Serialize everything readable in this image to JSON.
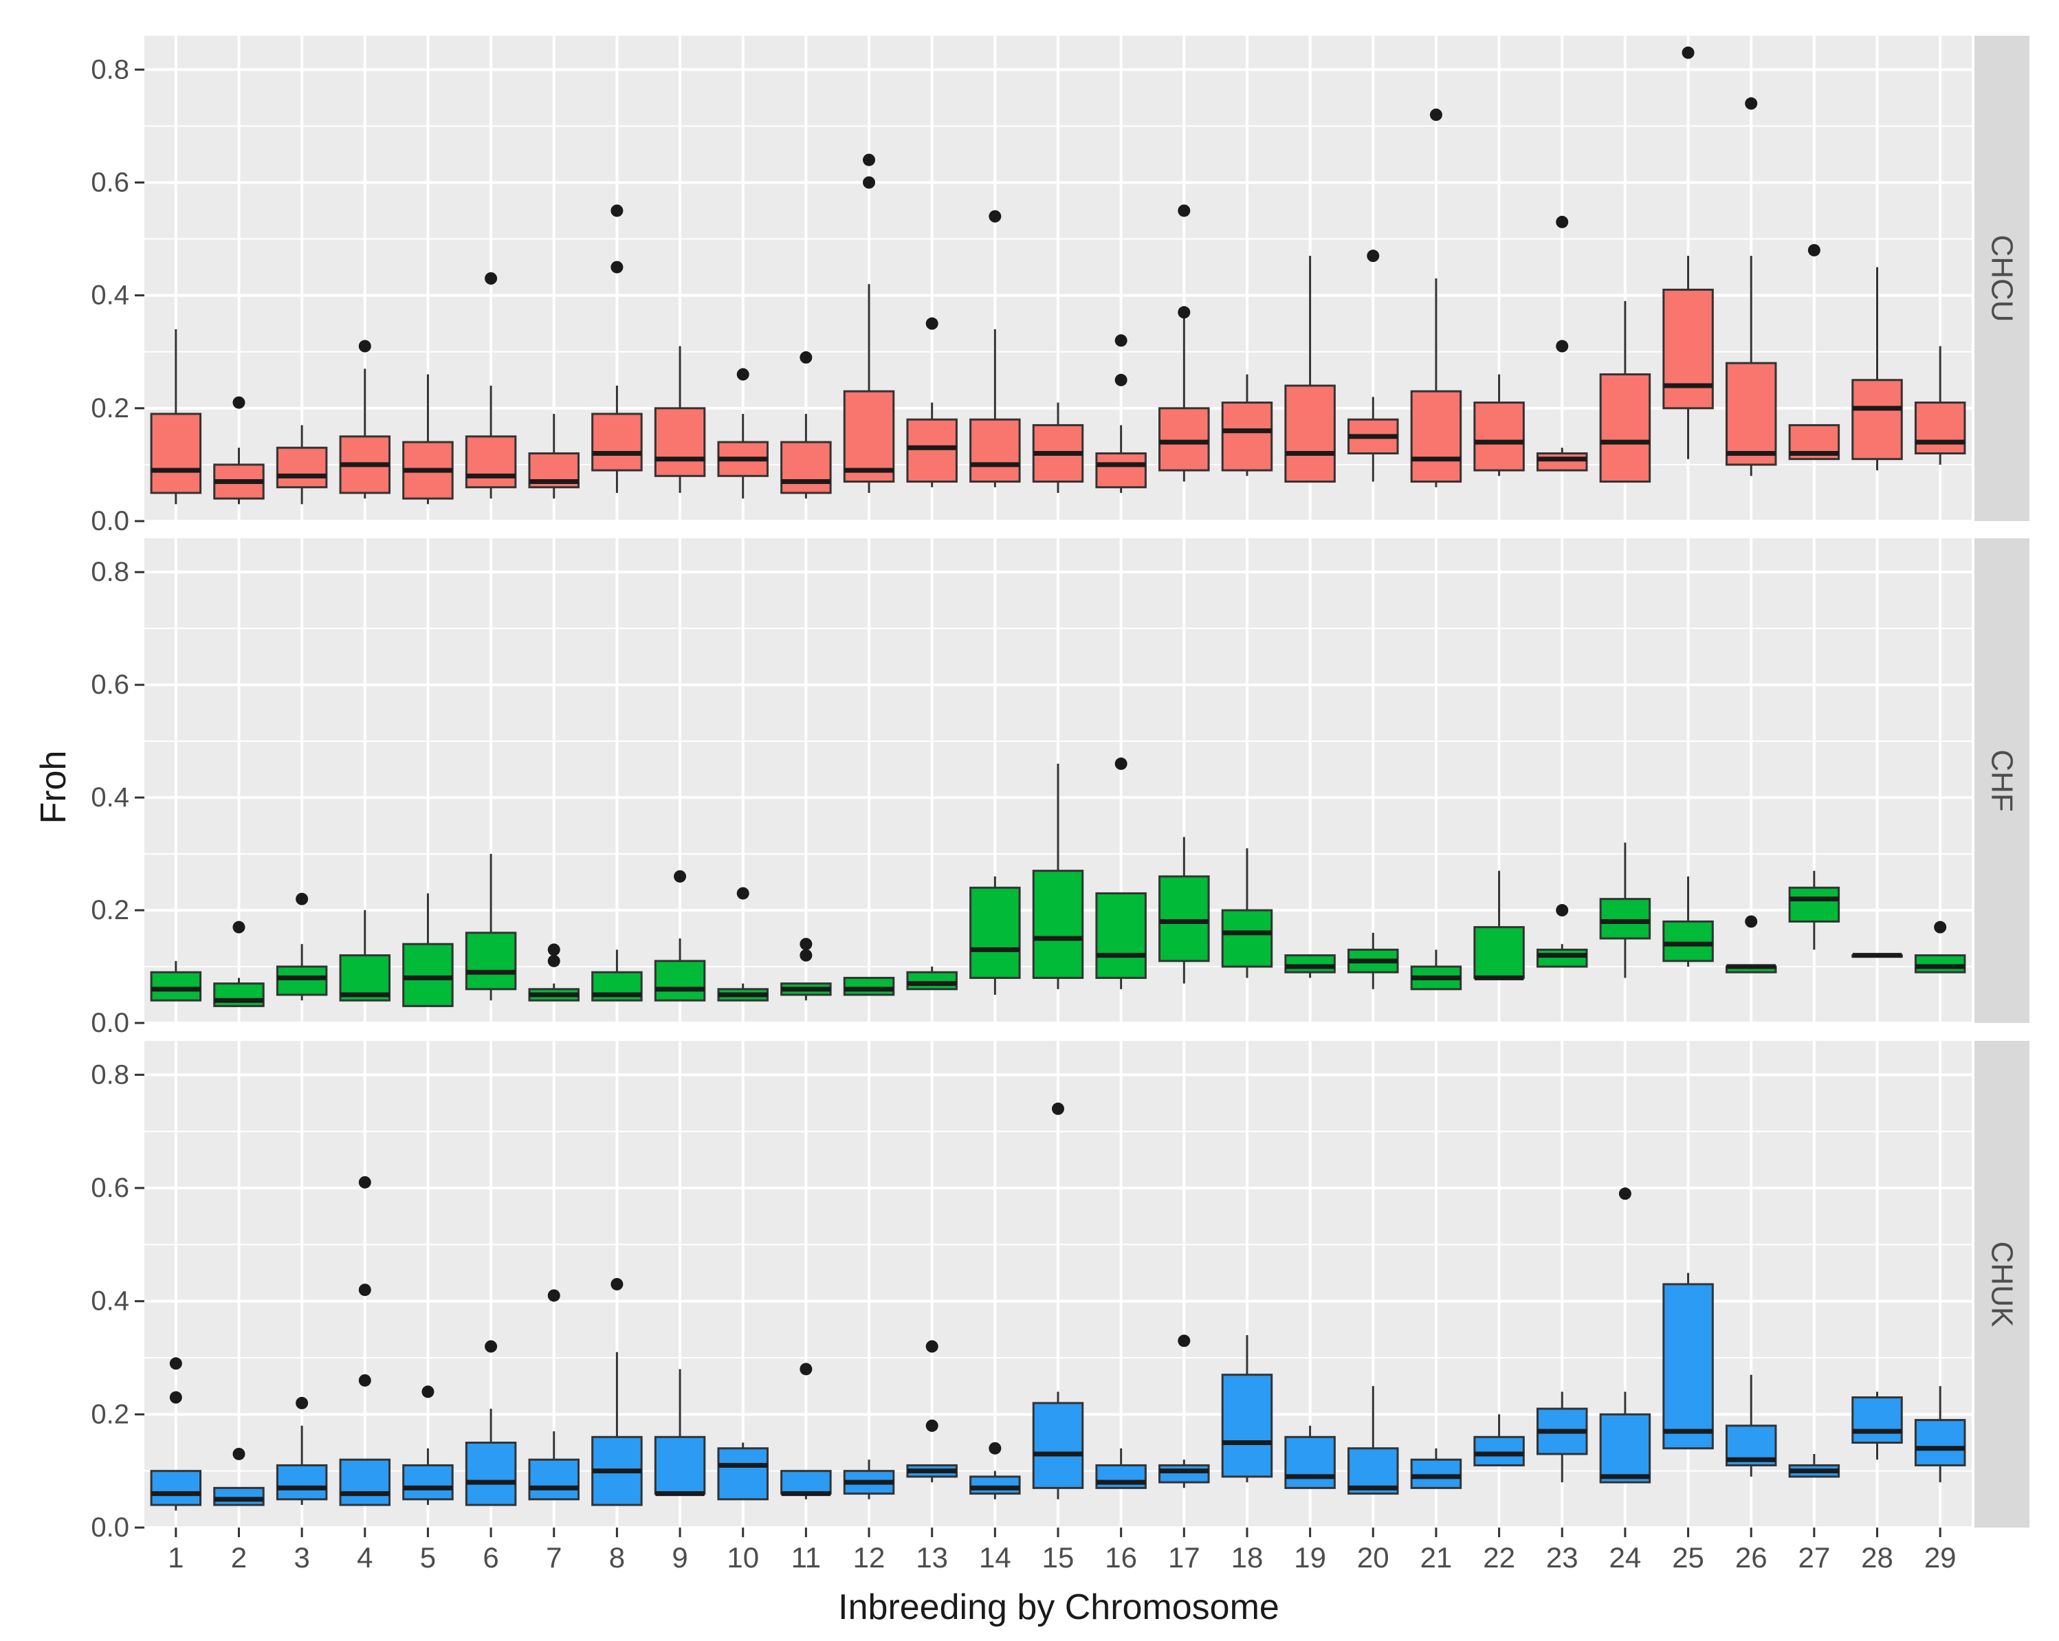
{
  "chart_data": {
    "type": "boxplot",
    "xlabel": "Inbreeding by Chromosome",
    "ylabel": "Froh",
    "ylim": [
      0,
      0.86
    ],
    "yticks": [
      "0.0",
      "0.2",
      "0.4",
      "0.6",
      "0.8"
    ],
    "categories": [
      "1",
      "2",
      "3",
      "4",
      "5",
      "6",
      "7",
      "8",
      "9",
      "10",
      "11",
      "12",
      "13",
      "14",
      "15",
      "16",
      "17",
      "18",
      "19",
      "20",
      "21",
      "22",
      "23",
      "24",
      "25",
      "26",
      "27",
      "28",
      "29"
    ],
    "colors": {
      "panel_bg": "#ebebeb",
      "grid": "#ffffff",
      "strip_bg": "#d9d9d9",
      "box_outline": "#333333",
      "outlier": "#1a1a1a"
    },
    "panels": [
      {
        "name": "CHCU",
        "fill": "#f8766d",
        "boxes": [
          {
            "lw": 0.03,
            "q1": 0.05,
            "med": 0.09,
            "q3": 0.19,
            "uw": 0.34,
            "out": []
          },
          {
            "lw": 0.03,
            "q1": 0.04,
            "med": 0.07,
            "q3": 0.1,
            "uw": 0.13,
            "out": [
              0.21
            ]
          },
          {
            "lw": 0.03,
            "q1": 0.06,
            "med": 0.08,
            "q3": 0.13,
            "uw": 0.17,
            "out": []
          },
          {
            "lw": 0.04,
            "q1": 0.05,
            "med": 0.1,
            "q3": 0.15,
            "uw": 0.27,
            "out": [
              0.31
            ]
          },
          {
            "lw": 0.03,
            "q1": 0.04,
            "med": 0.09,
            "q3": 0.14,
            "uw": 0.26,
            "out": []
          },
          {
            "lw": 0.04,
            "q1": 0.06,
            "med": 0.08,
            "q3": 0.15,
            "uw": 0.24,
            "out": [
              0.43
            ]
          },
          {
            "lw": 0.04,
            "q1": 0.06,
            "med": 0.07,
            "q3": 0.12,
            "uw": 0.19,
            "out": []
          },
          {
            "lw": 0.05,
            "q1": 0.09,
            "med": 0.12,
            "q3": 0.19,
            "uw": 0.24,
            "out": [
              0.45,
              0.55
            ]
          },
          {
            "lw": 0.05,
            "q1": 0.08,
            "med": 0.11,
            "q3": 0.2,
            "uw": 0.31,
            "out": []
          },
          {
            "lw": 0.04,
            "q1": 0.08,
            "med": 0.11,
            "q3": 0.14,
            "uw": 0.19,
            "out": [
              0.26
            ]
          },
          {
            "lw": 0.04,
            "q1": 0.05,
            "med": 0.07,
            "q3": 0.14,
            "uw": 0.19,
            "out": [
              0.29
            ]
          },
          {
            "lw": 0.05,
            "q1": 0.07,
            "med": 0.09,
            "q3": 0.23,
            "uw": 0.42,
            "out": [
              0.6,
              0.64
            ]
          },
          {
            "lw": 0.06,
            "q1": 0.07,
            "med": 0.13,
            "q3": 0.18,
            "uw": 0.21,
            "out": [
              0.35
            ]
          },
          {
            "lw": 0.06,
            "q1": 0.07,
            "med": 0.1,
            "q3": 0.18,
            "uw": 0.34,
            "out": [
              0.54
            ]
          },
          {
            "lw": 0.05,
            "q1": 0.07,
            "med": 0.12,
            "q3": 0.17,
            "uw": 0.21,
            "out": []
          },
          {
            "lw": 0.05,
            "q1": 0.06,
            "med": 0.1,
            "q3": 0.12,
            "uw": 0.17,
            "out": [
              0.25,
              0.32
            ]
          },
          {
            "lw": 0.07,
            "q1": 0.09,
            "med": 0.14,
            "q3": 0.2,
            "uw": 0.36,
            "out": [
              0.37,
              0.55
            ]
          },
          {
            "lw": 0.08,
            "q1": 0.09,
            "med": 0.16,
            "q3": 0.21,
            "uw": 0.26,
            "out": []
          },
          {
            "lw": 0.07,
            "q1": 0.07,
            "med": 0.12,
            "q3": 0.24,
            "uw": 0.47,
            "out": []
          },
          {
            "lw": 0.07,
            "q1": 0.12,
            "med": 0.15,
            "q3": 0.18,
            "uw": 0.22,
            "out": [
              0.47
            ]
          },
          {
            "lw": 0.06,
            "q1": 0.07,
            "med": 0.11,
            "q3": 0.23,
            "uw": 0.43,
            "out": [
              0.72
            ]
          },
          {
            "lw": 0.08,
            "q1": 0.09,
            "med": 0.14,
            "q3": 0.21,
            "uw": 0.26,
            "out": []
          },
          {
            "lw": 0.09,
            "q1": 0.09,
            "med": 0.11,
            "q3": 0.12,
            "uw": 0.13,
            "out": [
              0.31,
              0.53
            ]
          },
          {
            "lw": 0.07,
            "q1": 0.07,
            "med": 0.14,
            "q3": 0.26,
            "uw": 0.39,
            "out": []
          },
          {
            "lw": 0.11,
            "q1": 0.2,
            "med": 0.24,
            "q3": 0.41,
            "uw": 0.47,
            "out": [
              0.83
            ]
          },
          {
            "lw": 0.08,
            "q1": 0.1,
            "med": 0.12,
            "q3": 0.28,
            "uw": 0.47,
            "out": [
              0.74
            ]
          },
          {
            "lw": 0.11,
            "q1": 0.11,
            "med": 0.12,
            "q3": 0.17,
            "uw": 0.17,
            "out": [
              0.48
            ]
          },
          {
            "lw": 0.09,
            "q1": 0.11,
            "med": 0.2,
            "q3": 0.25,
            "uw": 0.45,
            "out": []
          },
          {
            "lw": 0.1,
            "q1": 0.12,
            "med": 0.14,
            "q3": 0.21,
            "uw": 0.31,
            "out": []
          }
        ]
      },
      {
        "name": "CHF",
        "fill": "#00ba38",
        "boxes": [
          {
            "lw": 0.04,
            "q1": 0.04,
            "med": 0.06,
            "q3": 0.09,
            "uw": 0.11,
            "out": []
          },
          {
            "lw": 0.03,
            "q1": 0.03,
            "med": 0.04,
            "q3": 0.07,
            "uw": 0.08,
            "out": [
              0.17
            ]
          },
          {
            "lw": 0.04,
            "q1": 0.05,
            "med": 0.08,
            "q3": 0.1,
            "uw": 0.14,
            "out": [
              0.22
            ]
          },
          {
            "lw": 0.04,
            "q1": 0.04,
            "med": 0.05,
            "q3": 0.12,
            "uw": 0.2,
            "out": []
          },
          {
            "lw": 0.03,
            "q1": 0.03,
            "med": 0.08,
            "q3": 0.14,
            "uw": 0.23,
            "out": []
          },
          {
            "lw": 0.04,
            "q1": 0.06,
            "med": 0.09,
            "q3": 0.16,
            "uw": 0.3,
            "out": []
          },
          {
            "lw": 0.04,
            "q1": 0.04,
            "med": 0.05,
            "q3": 0.06,
            "uw": 0.07,
            "out": [
              0.11,
              0.13
            ]
          },
          {
            "lw": 0.04,
            "q1": 0.04,
            "med": 0.05,
            "q3": 0.09,
            "uw": 0.13,
            "out": []
          },
          {
            "lw": 0.04,
            "q1": 0.04,
            "med": 0.06,
            "q3": 0.11,
            "uw": 0.15,
            "out": [
              0.26
            ]
          },
          {
            "lw": 0.04,
            "q1": 0.04,
            "med": 0.05,
            "q3": 0.06,
            "uw": 0.07,
            "out": [
              0.23
            ]
          },
          {
            "lw": 0.04,
            "q1": 0.05,
            "med": 0.06,
            "q3": 0.07,
            "uw": 0.07,
            "out": [
              0.12,
              0.14
            ]
          },
          {
            "lw": 0.05,
            "q1": 0.05,
            "med": 0.06,
            "q3": 0.08,
            "uw": 0.08,
            "out": []
          },
          {
            "lw": 0.06,
            "q1": 0.06,
            "med": 0.07,
            "q3": 0.09,
            "uw": 0.1,
            "out": []
          },
          {
            "lw": 0.05,
            "q1": 0.08,
            "med": 0.13,
            "q3": 0.24,
            "uw": 0.26,
            "out": []
          },
          {
            "lw": 0.06,
            "q1": 0.08,
            "med": 0.15,
            "q3": 0.27,
            "uw": 0.46,
            "out": []
          },
          {
            "lw": 0.06,
            "q1": 0.08,
            "med": 0.12,
            "q3": 0.23,
            "uw": 0.23,
            "out": [
              0.46
            ]
          },
          {
            "lw": 0.07,
            "q1": 0.11,
            "med": 0.18,
            "q3": 0.26,
            "uw": 0.33,
            "out": []
          },
          {
            "lw": 0.08,
            "q1": 0.1,
            "med": 0.16,
            "q3": 0.2,
            "uw": 0.31,
            "out": []
          },
          {
            "lw": 0.08,
            "q1": 0.09,
            "med": 0.1,
            "q3": 0.12,
            "uw": 0.12,
            "out": []
          },
          {
            "lw": 0.06,
            "q1": 0.09,
            "med": 0.11,
            "q3": 0.13,
            "uw": 0.16,
            "out": []
          },
          {
            "lw": 0.06,
            "q1": 0.06,
            "med": 0.08,
            "q3": 0.1,
            "uw": 0.13,
            "out": []
          },
          {
            "lw": 0.08,
            "q1": 0.08,
            "med": 0.08,
            "q3": 0.17,
            "uw": 0.27,
            "out": []
          },
          {
            "lw": 0.1,
            "q1": 0.1,
            "med": 0.12,
            "q3": 0.13,
            "uw": 0.14,
            "out": [
              0.2
            ]
          },
          {
            "lw": 0.08,
            "q1": 0.15,
            "med": 0.18,
            "q3": 0.22,
            "uw": 0.32,
            "out": []
          },
          {
            "lw": 0.1,
            "q1": 0.11,
            "med": 0.14,
            "q3": 0.18,
            "uw": 0.26,
            "out": []
          },
          {
            "lw": 0.09,
            "q1": 0.09,
            "med": 0.1,
            "q3": 0.1,
            "uw": 0.1,
            "out": [
              0.18
            ]
          },
          {
            "lw": 0.13,
            "q1": 0.18,
            "med": 0.22,
            "q3": 0.24,
            "uw": 0.27,
            "out": []
          },
          {
            "lw": 0.12,
            "q1": 0.12,
            "med": 0.12,
            "q3": 0.12,
            "uw": 0.12,
            "out": []
          },
          {
            "lw": 0.09,
            "q1": 0.09,
            "med": 0.1,
            "q3": 0.12,
            "uw": 0.12,
            "out": [
              0.17
            ]
          }
        ]
      },
      {
        "name": "CHUK",
        "fill": "#2b9bf4",
        "boxes": [
          {
            "lw": 0.03,
            "q1": 0.04,
            "med": 0.06,
            "q3": 0.1,
            "uw": 0.1,
            "out": [
              0.23,
              0.29
            ]
          },
          {
            "lw": 0.04,
            "q1": 0.04,
            "med": 0.05,
            "q3": 0.07,
            "uw": 0.07,
            "out": [
              0.13
            ]
          },
          {
            "lw": 0.04,
            "q1": 0.05,
            "med": 0.07,
            "q3": 0.11,
            "uw": 0.18,
            "out": [
              0.22
            ]
          },
          {
            "lw": 0.04,
            "q1": 0.04,
            "med": 0.06,
            "q3": 0.12,
            "uw": 0.12,
            "out": [
              0.26,
              0.42,
              0.61
            ]
          },
          {
            "lw": 0.04,
            "q1": 0.05,
            "med": 0.07,
            "q3": 0.11,
            "uw": 0.14,
            "out": [
              0.24
            ]
          },
          {
            "lw": 0.04,
            "q1": 0.04,
            "med": 0.08,
            "q3": 0.15,
            "uw": 0.21,
            "out": [
              0.32
            ]
          },
          {
            "lw": 0.05,
            "q1": 0.05,
            "med": 0.07,
            "q3": 0.12,
            "uw": 0.17,
            "out": [
              0.41
            ]
          },
          {
            "lw": 0.04,
            "q1": 0.04,
            "med": 0.1,
            "q3": 0.16,
            "uw": 0.31,
            "out": [
              0.43
            ]
          },
          {
            "lw": 0.06,
            "q1": 0.06,
            "med": 0.06,
            "q3": 0.16,
            "uw": 0.28,
            "out": []
          },
          {
            "lw": 0.05,
            "q1": 0.05,
            "med": 0.11,
            "q3": 0.14,
            "uw": 0.15,
            "out": []
          },
          {
            "lw": 0.05,
            "q1": 0.06,
            "med": 0.06,
            "q3": 0.1,
            "uw": 0.1,
            "out": [
              0.28
            ]
          },
          {
            "lw": 0.05,
            "q1": 0.06,
            "med": 0.08,
            "q3": 0.1,
            "uw": 0.12,
            "out": []
          },
          {
            "lw": 0.08,
            "q1": 0.09,
            "med": 0.1,
            "q3": 0.11,
            "uw": 0.11,
            "out": [
              0.18,
              0.32
            ]
          },
          {
            "lw": 0.05,
            "q1": 0.06,
            "med": 0.07,
            "q3": 0.09,
            "uw": 0.1,
            "out": [
              0.14
            ]
          },
          {
            "lw": 0.05,
            "q1": 0.07,
            "med": 0.13,
            "q3": 0.22,
            "uw": 0.24,
            "out": [
              0.74
            ]
          },
          {
            "lw": 0.07,
            "q1": 0.07,
            "med": 0.08,
            "q3": 0.11,
            "uw": 0.14,
            "out": []
          },
          {
            "lw": 0.07,
            "q1": 0.08,
            "med": 0.1,
            "q3": 0.11,
            "uw": 0.12,
            "out": [
              0.33
            ]
          },
          {
            "lw": 0.08,
            "q1": 0.09,
            "med": 0.15,
            "q3": 0.27,
            "uw": 0.34,
            "out": []
          },
          {
            "lw": 0.07,
            "q1": 0.07,
            "med": 0.09,
            "q3": 0.16,
            "uw": 0.18,
            "out": []
          },
          {
            "lw": 0.06,
            "q1": 0.06,
            "med": 0.07,
            "q3": 0.14,
            "uw": 0.25,
            "out": []
          },
          {
            "lw": 0.07,
            "q1": 0.07,
            "med": 0.09,
            "q3": 0.12,
            "uw": 0.14,
            "out": []
          },
          {
            "lw": 0.11,
            "q1": 0.11,
            "med": 0.13,
            "q3": 0.16,
            "uw": 0.2,
            "out": []
          },
          {
            "lw": 0.08,
            "q1": 0.13,
            "med": 0.17,
            "q3": 0.21,
            "uw": 0.24,
            "out": []
          },
          {
            "lw": 0.08,
            "q1": 0.08,
            "med": 0.09,
            "q3": 0.2,
            "uw": 0.24,
            "out": [
              0.59
            ]
          },
          {
            "lw": 0.14,
            "q1": 0.14,
            "med": 0.17,
            "q3": 0.43,
            "uw": 0.45,
            "out": []
          },
          {
            "lw": 0.09,
            "q1": 0.11,
            "med": 0.12,
            "q3": 0.18,
            "uw": 0.27,
            "out": []
          },
          {
            "lw": 0.09,
            "q1": 0.09,
            "med": 0.1,
            "q3": 0.11,
            "uw": 0.13,
            "out": []
          },
          {
            "lw": 0.12,
            "q1": 0.15,
            "med": 0.17,
            "q3": 0.23,
            "uw": 0.24,
            "out": []
          },
          {
            "lw": 0.08,
            "q1": 0.11,
            "med": 0.14,
            "q3": 0.19,
            "uw": 0.25,
            "out": []
          }
        ]
      }
    ]
  }
}
